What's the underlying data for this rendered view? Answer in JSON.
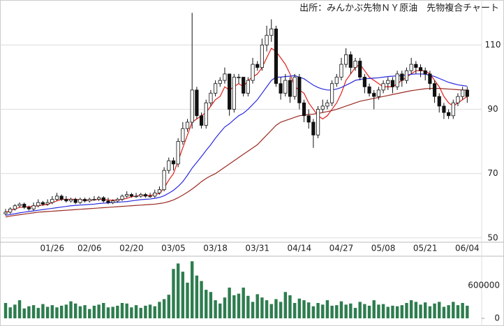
{
  "chart_data": [
    {
      "type": "candlestick",
      "title": "出所：みんかぶ先物ＮＹ原油　先物複合チャート",
      "categories": [
        null,
        null,
        null,
        null,
        null,
        null,
        null,
        null,
        null,
        null,
        "01/26",
        null,
        null,
        null,
        null,
        null,
        null,
        null,
        "02/06",
        null,
        null,
        null,
        null,
        null,
        null,
        null,
        null,
        "02/20",
        null,
        null,
        null,
        null,
        null,
        null,
        null,
        null,
        "03/05",
        null,
        null,
        null,
        null,
        null,
        null,
        null,
        null,
        "03/18",
        null,
        null,
        null,
        null,
        null,
        null,
        null,
        null,
        "03/31",
        null,
        null,
        null,
        null,
        null,
        null,
        null,
        null,
        "04/14",
        null,
        null,
        null,
        null,
        null,
        null,
        null,
        null,
        "04/27",
        null,
        null,
        null,
        null,
        null,
        null,
        null,
        null,
        "05/08",
        null,
        null,
        null,
        null,
        null,
        null,
        null,
        null,
        "05/21",
        null,
        null,
        null,
        null,
        null,
        null,
        null,
        null,
        "06/04"
      ],
      "open": [
        57.5,
        58,
        59,
        60,
        60.5,
        59.5,
        59,
        60,
        61,
        60.5,
        61,
        62,
        63,
        62,
        61.5,
        62,
        61,
        62,
        61.5,
        62,
        62,
        62.5,
        61.5,
        61,
        61.5,
        62,
        63,
        63.5,
        63,
        63,
        63.5,
        63,
        63,
        64,
        65,
        71,
        74,
        73,
        80,
        84,
        86,
        96,
        88,
        85,
        92,
        95,
        98,
        99,
        101,
        90,
        100,
        100,
        95,
        99,
        104,
        103,
        110,
        113,
        115,
        98,
        95,
        99,
        94,
        100,
        92,
        88,
        86,
        82,
        90,
        91,
        92,
        98,
        100,
        104,
        107,
        103,
        105,
        100,
        97,
        95,
        94,
        96,
        98,
        99,
        97,
        101,
        99,
        102,
        104,
        103,
        102,
        101,
        98,
        94,
        91,
        89,
        88,
        92,
        94,
        96
      ],
      "high": [
        59,
        59.5,
        60.5,
        61,
        61,
        60,
        61,
        62,
        61.5,
        62,
        63,
        64,
        63.5,
        63,
        62.5,
        62.5,
        62.5,
        62.5,
        62.5,
        63,
        63,
        63,
        62.5,
        62,
        62.5,
        63.5,
        64.5,
        64,
        64,
        64,
        64,
        64,
        65,
        66,
        72,
        75,
        75,
        81,
        86,
        87,
        120,
        97,
        89,
        93,
        96,
        99,
        100,
        103,
        101,
        101,
        101,
        100,
        100,
        106,
        105,
        112,
        116,
        118,
        116,
        100,
        101,
        100,
        101,
        101,
        93,
        90,
        87,
        91,
        93,
        93,
        99,
        101,
        106,
        109,
        108,
        106,
        106,
        101,
        98,
        96,
        97,
        99,
        100,
        100,
        102,
        102,
        103,
        106,
        105,
        104,
        103,
        102,
        99,
        95,
        92,
        90,
        93,
        95,
        97,
        97
      ],
      "low": [
        57,
        57.5,
        58.5,
        59.5,
        59,
        58.5,
        58.5,
        59.5,
        60,
        60,
        60.5,
        61.5,
        61.5,
        61,
        61,
        60.5,
        60.5,
        61,
        61,
        61.5,
        61.5,
        61,
        60.5,
        60.5,
        61,
        61.5,
        62.5,
        62.5,
        62.5,
        62.5,
        62.5,
        62.5,
        62.5,
        63.5,
        64.5,
        70,
        71,
        72,
        79,
        83,
        84,
        87,
        84,
        84,
        91,
        94,
        97,
        98,
        88,
        89,
        98,
        94,
        94,
        98,
        102,
        102,
        108,
        111,
        97,
        93,
        94,
        92,
        93,
        90,
        86,
        84,
        78,
        81,
        89,
        90,
        91,
        97,
        99,
        103,
        101,
        102,
        99,
        95,
        94,
        90,
        93,
        95,
        96,
        95,
        96,
        97,
        98,
        101,
        101,
        100,
        99,
        96,
        92,
        89,
        87,
        87,
        87,
        91,
        93,
        92
      ],
      "close": [
        58,
        59,
        60,
        60.5,
        59.5,
        59,
        60,
        61,
        60.5,
        61,
        62,
        63,
        62,
        61.5,
        62,
        61,
        62,
        61.5,
        62,
        62,
        62.5,
        61.5,
        61,
        61.5,
        62,
        63,
        63.5,
        63,
        63,
        63.5,
        63,
        63,
        64,
        65,
        71,
        74,
        73,
        80,
        84,
        86,
        96,
        88,
        85,
        92,
        95,
        98,
        99,
        101,
        90,
        100,
        100,
        95,
        99,
        104,
        103,
        110,
        113,
        115,
        98,
        95,
        99,
        94,
        100,
        92,
        88,
        86,
        82,
        90,
        91,
        92,
        98,
        100,
        104,
        107,
        103,
        105,
        100,
        97,
        95,
        94,
        96,
        98,
        99,
        97,
        101,
        99,
        102,
        104,
        103,
        102,
        101,
        98,
        94,
        91,
        89,
        88,
        92,
        94,
        96,
        94
      ],
      "lines": [
        {
          "color": "#e0201a",
          "values": [
            58,
            58.5,
            59,
            59.5,
            59.6,
            59.7,
            59.8,
            60,
            60.2,
            60.4,
            61,
            61.5,
            62,
            62,
            62,
            62,
            61.8,
            61.7,
            61.7,
            61.8,
            62,
            62,
            61.8,
            61.7,
            61.8,
            62,
            62.3,
            62.8,
            63,
            63.2,
            63.2,
            63.2,
            63.5,
            63.8,
            65.5,
            68,
            70,
            74,
            78,
            82,
            86,
            87,
            88,
            89,
            91,
            93,
            94,
            97,
            96,
            97,
            98,
            97,
            99,
            100,
            101,
            103,
            106,
            109,
            108,
            106,
            104,
            101,
            97,
            96,
            95,
            92,
            90,
            88,
            87,
            88,
            90,
            92,
            95,
            99,
            101,
            103,
            104,
            102,
            100,
            99,
            98,
            97,
            97,
            97,
            98,
            99,
            100,
            101,
            102,
            102,
            102,
            101,
            99,
            97,
            94,
            92,
            91,
            92,
            93,
            94
          ]
        },
        {
          "color": "#2a2ae0",
          "values": [
            57,
            57.3,
            57.5,
            57.8,
            58,
            58.2,
            58.4,
            58.6,
            58.8,
            59,
            59.2,
            59.4,
            59.6,
            59.8,
            60,
            60.1,
            60.2,
            60.3,
            60.4,
            60.5,
            60.7,
            60.8,
            60.9,
            61,
            61.1,
            61.2,
            61.3,
            61.5,
            61.7,
            61.9,
            62,
            62.1,
            62.3,
            62.6,
            63.1,
            63.9,
            64.8,
            66,
            67.5,
            69.5,
            71.7,
            73.5,
            75.3,
            77.2,
            79,
            81,
            82.8,
            84.5,
            85.5,
            86.8,
            88,
            88.8,
            90,
            91.5,
            93,
            95,
            97,
            99,
            100,
            100,
            100.2,
            100.3,
            100.5,
            100,
            99.5,
            98.5,
            97.5,
            96.8,
            96.3,
            96,
            96,
            96.3,
            96.8,
            97.5,
            98.2,
            99,
            99.3,
            99.5,
            99.6,
            99.7,
            99.8,
            100,
            100.2,
            100.3,
            100.4,
            100.5,
            100.7,
            100.9,
            101,
            101,
            100.9,
            100.6,
            100.2,
            99.6,
            99,
            98.4,
            98,
            97.6,
            97.4,
            97.2
          ]
        },
        {
          "color": "#9b2a22",
          "values": [
            56.5,
            56.8,
            57,
            57.2,
            57.4,
            57.6,
            57.8,
            58,
            58.1,
            58.2,
            58.3,
            58.4,
            58.5,
            58.6,
            58.7,
            58.8,
            58.9,
            59,
            59.1,
            59.2,
            59.3,
            59.4,
            59.5,
            59.6,
            59.7,
            59.8,
            59.9,
            60,
            60.1,
            60.2,
            60.3,
            60.4,
            60.5,
            60.7,
            60.9,
            61.3,
            61.8,
            62.5,
            63.3,
            64.2,
            65.2,
            66.3,
            67.5,
            68.5,
            69.3,
            70,
            71,
            72,
            73,
            74,
            75,
            76,
            77,
            78,
            79,
            80.5,
            82,
            83.5,
            85,
            86,
            86.5,
            87,
            87.5,
            88,
            88.2,
            88.4,
            88.5,
            88.7,
            89,
            89.3,
            89.6,
            90,
            90.5,
            91,
            91.5,
            92,
            92.5,
            92.8,
            93.1,
            93.4,
            93.7,
            94,
            94.3,
            94.6,
            94.9,
            95.2,
            95.5,
            95.8,
            96,
            96.2,
            96.4,
            96.5,
            96.5,
            96.5,
            96.4,
            96.3,
            96.2,
            96.1,
            96,
            96
          ]
        }
      ],
      "ylim": [
        48,
        124
      ],
      "yticks": [
        50,
        70,
        90,
        110
      ],
      "grid": true
    },
    {
      "type": "bar",
      "color": "#2e7d4f",
      "values": [
        280000,
        200000,
        250000,
        330000,
        180000,
        220000,
        240000,
        190000,
        260000,
        210000,
        240000,
        200000,
        230000,
        250000,
        310000,
        270000,
        220000,
        240000,
        170000,
        230000,
        250000,
        280000,
        200000,
        210000,
        230000,
        280000,
        270000,
        200000,
        240000,
        190000,
        230000,
        250000,
        220000,
        300000,
        350000,
        430000,
        900000,
        1000000,
        850000,
        650000,
        1040000,
        780000,
        680000,
        520000,
        480000,
        330000,
        270000,
        380000,
        560000,
        420000,
        450000,
        560000,
        410000,
        300000,
        440000,
        380000,
        330000,
        260000,
        350000,
        300000,
        480000,
        420000,
        280000,
        360000,
        330000,
        290000,
        220000,
        280000,
        250000,
        330000,
        230000,
        240000,
        310000,
        250000,
        270000,
        190000,
        300000,
        260000,
        230000,
        330000,
        250000,
        260000,
        210000,
        230000,
        220000,
        240000,
        280000,
        330000,
        300000,
        250000,
        290000,
        220000,
        270000,
        300000,
        210000,
        240000,
        300000,
        240000,
        280000,
        230000
      ],
      "ylim": [
        0,
        1120000
      ],
      "yticks": [
        0,
        600000
      ]
    }
  ]
}
